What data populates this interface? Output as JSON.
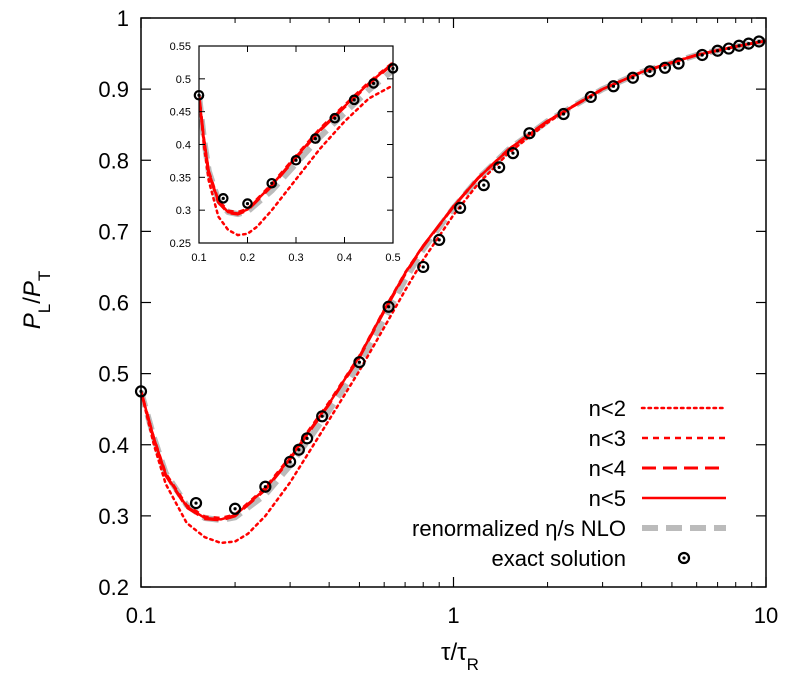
{
  "chart_data": [
    {
      "type": "line",
      "id": "main",
      "title": "",
      "xlabel": {
        "base": "τ/τ",
        "sub": "R"
      },
      "ylabel": {
        "p1": "P",
        "s1": "L",
        "mid": "/",
        "p2": "P",
        "s2": "T"
      },
      "x_scale": "log",
      "xlim": [
        0.1,
        10
      ],
      "ylim": [
        0.2,
        1.0
      ],
      "x_ticks": [
        {
          "v": 0.1,
          "label": "0.1"
        },
        {
          "v": 1,
          "label": "1"
        },
        {
          "v": 10,
          "label": "10"
        }
      ],
      "y_ticks": [
        {
          "v": 0.2,
          "label": "0.2"
        },
        {
          "v": 0.3,
          "label": "0.3"
        },
        {
          "v": 0.4,
          "label": "0.4"
        },
        {
          "v": 0.5,
          "label": "0.5"
        },
        {
          "v": 0.6,
          "label": "0.6"
        },
        {
          "v": 0.7,
          "label": "0.7"
        },
        {
          "v": 0.8,
          "label": "0.8"
        },
        {
          "v": 0.9,
          "label": "0.9"
        },
        {
          "v": 1.0,
          "label": "1"
        }
      ],
      "grid": false,
      "legend_position": "bottom-right",
      "series": [
        {
          "name": "n<2",
          "style": "dotted",
          "color": "#ff0000",
          "x": [
            0.1,
            0.11,
            0.12,
            0.14,
            0.16,
            0.18,
            0.2,
            0.22,
            0.25,
            0.3,
            0.35,
            0.4,
            0.5,
            0.6,
            0.7,
            0.8,
            1.0,
            1.2,
            1.5,
            2.0,
            2.5,
            3.0,
            4.0,
            5.0,
            6.0,
            8.0,
            10.0
          ],
          "y": [
            0.475,
            0.4,
            0.345,
            0.29,
            0.27,
            0.262,
            0.264,
            0.275,
            0.3,
            0.347,
            0.394,
            0.435,
            0.504,
            0.565,
            0.617,
            0.66,
            0.723,
            0.767,
            0.81,
            0.853,
            0.88,
            0.9,
            0.924,
            0.938,
            0.948,
            0.96,
            0.968
          ]
        },
        {
          "name": "n<3",
          "style": "short-dash",
          "color": "#ff0000",
          "x": [
            0.1,
            0.11,
            0.12,
            0.14,
            0.16,
            0.18,
            0.2,
            0.25,
            0.3,
            0.35,
            0.4,
            0.5,
            0.6,
            0.7,
            0.8,
            1.0,
            1.2,
            1.5,
            2.0,
            3.0,
            4.0,
            6.0,
            8.0,
            10.0
          ],
          "y": [
            0.475,
            0.41,
            0.36,
            0.315,
            0.299,
            0.297,
            0.302,
            0.34,
            0.383,
            0.425,
            0.46,
            0.525,
            0.59,
            0.642,
            0.68,
            0.735,
            0.775,
            0.815,
            0.855,
            0.9,
            0.924,
            0.948,
            0.96,
            0.968
          ]
        },
        {
          "name": "n<4",
          "style": "long-dash",
          "color": "#ff0000",
          "x": [
            0.1,
            0.11,
            0.12,
            0.14,
            0.16,
            0.18,
            0.2,
            0.25,
            0.3,
            0.35,
            0.4,
            0.5,
            0.6,
            0.7,
            0.8,
            1.0,
            1.2,
            1.5,
            2.0,
            3.0,
            4.0,
            6.0,
            8.0,
            10.0
          ],
          "y": [
            0.475,
            0.408,
            0.357,
            0.312,
            0.296,
            0.294,
            0.3,
            0.337,
            0.38,
            0.422,
            0.457,
            0.523,
            0.588,
            0.64,
            0.679,
            0.735,
            0.775,
            0.815,
            0.855,
            0.9,
            0.924,
            0.948,
            0.96,
            0.968
          ]
        },
        {
          "name": "n<5",
          "style": "solid",
          "color": "#ff0000",
          "x": [
            0.1,
            0.11,
            0.12,
            0.14,
            0.16,
            0.18,
            0.2,
            0.25,
            0.3,
            0.35,
            0.4,
            0.5,
            0.6,
            0.7,
            0.8,
            1.0,
            1.2,
            1.5,
            2.0,
            3.0,
            4.0,
            6.0,
            8.0,
            10.0
          ],
          "y": [
            0.475,
            0.409,
            0.358,
            0.313,
            0.297,
            0.295,
            0.301,
            0.338,
            0.381,
            0.423,
            0.458,
            0.524,
            0.589,
            0.641,
            0.68,
            0.735,
            0.775,
            0.815,
            0.855,
            0.9,
            0.924,
            0.948,
            0.96,
            0.968
          ]
        },
        {
          "name": "renormalized η/s NLO",
          "style": "thick-dash",
          "color": "#bbbbbb",
          "x": [
            0.1,
            0.11,
            0.12,
            0.14,
            0.16,
            0.18,
            0.2,
            0.25,
            0.3,
            0.35,
            0.4,
            0.5,
            0.6,
            0.7,
            0.8,
            1.0,
            1.2,
            1.5,
            2.0,
            3.0,
            4.0,
            6.0,
            8.0,
            10.0
          ],
          "y": [
            0.475,
            0.41,
            0.36,
            0.315,
            0.297,
            0.294,
            0.298,
            0.33,
            0.371,
            0.412,
            0.448,
            0.513,
            0.577,
            0.632,
            0.675,
            0.733,
            0.774,
            0.815,
            0.855,
            0.9,
            0.924,
            0.948,
            0.96,
            0.968
          ]
        },
        {
          "name": "exact solution",
          "style": "markers",
          "color": "#000000",
          "x": [
            0.1,
            0.15,
            0.2,
            0.25,
            0.3,
            0.32,
            0.34,
            0.38,
            0.5,
            0.62,
            0.8,
            0.9,
            1.05,
            1.25,
            1.4,
            1.55,
            1.75,
            2.25,
            2.75,
            3.25,
            3.75,
            4.25,
            4.75,
            5.25,
            6.25,
            7.0,
            7.6,
            8.2,
            8.8,
            9.5
          ],
          "y": [
            0.475,
            0.318,
            0.31,
            0.341,
            0.376,
            0.393,
            0.409,
            0.44,
            0.516,
            0.594,
            0.65,
            0.688,
            0.733,
            0.765,
            0.79,
            0.81,
            0.838,
            0.865,
            0.889,
            0.904,
            0.916,
            0.925,
            0.93,
            0.936,
            0.948,
            0.954,
            0.957,
            0.961,
            0.964,
            0.967
          ]
        }
      ]
    },
    {
      "type": "line",
      "id": "inset",
      "title": "",
      "xlabel": "",
      "ylabel": "",
      "x_scale": "linear",
      "xlim": [
        0.1,
        0.5
      ],
      "ylim": [
        0.25,
        0.55
      ],
      "x_ticks": [
        {
          "v": 0.1,
          "label": "0.1"
        },
        {
          "v": 0.2,
          "label": "0.2"
        },
        {
          "v": 0.3,
          "label": "0.3"
        },
        {
          "v": 0.4,
          "label": "0.4"
        },
        {
          "v": 0.5,
          "label": "0.5"
        }
      ],
      "y_ticks": [
        {
          "v": 0.25,
          "label": "0.25"
        },
        {
          "v": 0.3,
          "label": "0.3"
        },
        {
          "v": 0.35,
          "label": "0.35"
        },
        {
          "v": 0.4,
          "label": "0.4"
        },
        {
          "v": 0.45,
          "label": "0.45"
        },
        {
          "v": 0.5,
          "label": "0.5"
        },
        {
          "v": 0.55,
          "label": "0.55"
        }
      ],
      "grid": false,
      "series": [
        {
          "name": "n<2",
          "style": "dotted",
          "color": "#ff0000",
          "x": [
            0.1,
            0.11,
            0.12,
            0.14,
            0.16,
            0.18,
            0.2,
            0.22,
            0.25,
            0.3,
            0.35,
            0.4,
            0.45,
            0.5
          ],
          "y": [
            0.475,
            0.4,
            0.345,
            0.29,
            0.27,
            0.262,
            0.264,
            0.275,
            0.3,
            0.347,
            0.394,
            0.435,
            0.47,
            0.49
          ]
        },
        {
          "name": "n<3",
          "style": "short-dash",
          "color": "#ff0000",
          "x": [
            0.1,
            0.11,
            0.12,
            0.14,
            0.16,
            0.18,
            0.2,
            0.25,
            0.3,
            0.35,
            0.4,
            0.45,
            0.5
          ],
          "y": [
            0.475,
            0.41,
            0.36,
            0.315,
            0.299,
            0.297,
            0.302,
            0.34,
            0.383,
            0.425,
            0.46,
            0.495,
            0.525
          ]
        },
        {
          "name": "n<4",
          "style": "long-dash",
          "color": "#ff0000",
          "x": [
            0.1,
            0.11,
            0.12,
            0.14,
            0.16,
            0.18,
            0.2,
            0.25,
            0.3,
            0.35,
            0.4,
            0.45,
            0.5
          ],
          "y": [
            0.475,
            0.408,
            0.357,
            0.312,
            0.296,
            0.294,
            0.3,
            0.337,
            0.38,
            0.422,
            0.457,
            0.492,
            0.523
          ]
        },
        {
          "name": "n<5",
          "style": "solid",
          "color": "#ff0000",
          "x": [
            0.1,
            0.11,
            0.12,
            0.14,
            0.16,
            0.18,
            0.2,
            0.25,
            0.3,
            0.35,
            0.4,
            0.45,
            0.5
          ],
          "y": [
            0.475,
            0.409,
            0.358,
            0.313,
            0.297,
            0.295,
            0.301,
            0.338,
            0.381,
            0.423,
            0.458,
            0.493,
            0.524
          ]
        },
        {
          "name": "renormalized η/s NLO",
          "style": "thick-dash",
          "color": "#bbbbbb",
          "x": [
            0.1,
            0.11,
            0.12,
            0.14,
            0.16,
            0.18,
            0.2,
            0.25,
            0.3,
            0.35,
            0.4,
            0.45,
            0.5
          ],
          "y": [
            0.475,
            0.41,
            0.36,
            0.315,
            0.297,
            0.294,
            0.298,
            0.33,
            0.371,
            0.412,
            0.448,
            0.483,
            0.513
          ]
        },
        {
          "name": "exact solution",
          "style": "markers",
          "color": "#000000",
          "x": [
            0.1,
            0.15,
            0.2,
            0.25,
            0.3,
            0.34,
            0.38,
            0.42,
            0.46,
            0.5
          ],
          "y": [
            0.475,
            0.318,
            0.31,
            0.341,
            0.376,
            0.409,
            0.44,
            0.468,
            0.493,
            0.516
          ]
        }
      ]
    }
  ]
}
